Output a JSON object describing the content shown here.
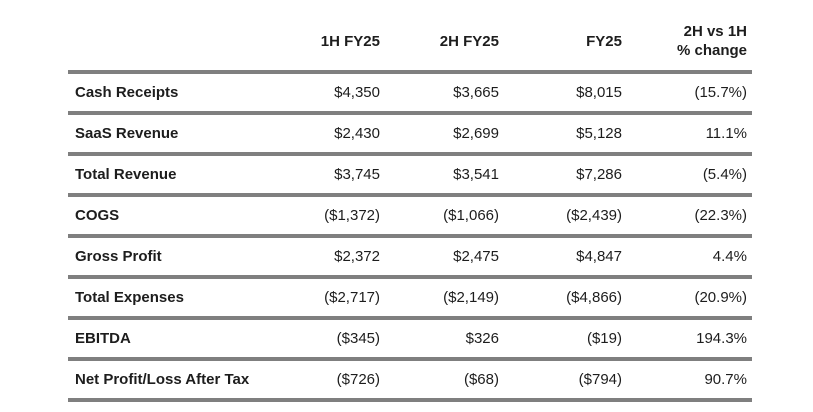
{
  "colors": {
    "background": "#ffffff",
    "text": "#1d1d1d",
    "rule_gray": "#7f7f7f"
  },
  "header": {
    "label_col": "",
    "col1": "1H FY25",
    "col2": "2H FY25",
    "col3": "FY25",
    "col4_line1": "2H vs 1H",
    "col4_line2": "% change"
  },
  "chart_data": {
    "type": "table",
    "title": "",
    "columns": [
      "",
      "1H FY25",
      "2H FY25",
      "FY25",
      "2H vs 1H % change"
    ],
    "rows": [
      [
        "Cash Receipts",
        "$4,350",
        "$3,665",
        "$8,015",
        "(15.7%)"
      ],
      [
        "SaaS Revenue",
        "$2,430",
        "$2,699",
        "$5,128",
        "11.1%"
      ],
      [
        "Total Revenue",
        "$3,745",
        "$3,541",
        "$7,286",
        "(5.4%)"
      ],
      [
        "COGS",
        "($1,372)",
        "($1,066)",
        "($2,439)",
        "(22.3%)"
      ],
      [
        "Gross Profit",
        "$2,372",
        "$2,475",
        "$4,847",
        "4.4%"
      ],
      [
        "Total Expenses",
        "($2,717)",
        "($2,149)",
        "($4,866)",
        "(20.9%)"
      ],
      [
        "EBITDA",
        "($345)",
        "$326",
        "($19)",
        "194.3%"
      ],
      [
        "Net Profit/Loss After Tax",
        "($726)",
        "($68)",
        "($794)",
        "90.7%"
      ]
    ],
    "notes": {
      "negative_values_format": "parentheses",
      "units": "currency-thousands-implied",
      "row_labels_bold": true,
      "grid": "horizontal-rules-only"
    }
  }
}
